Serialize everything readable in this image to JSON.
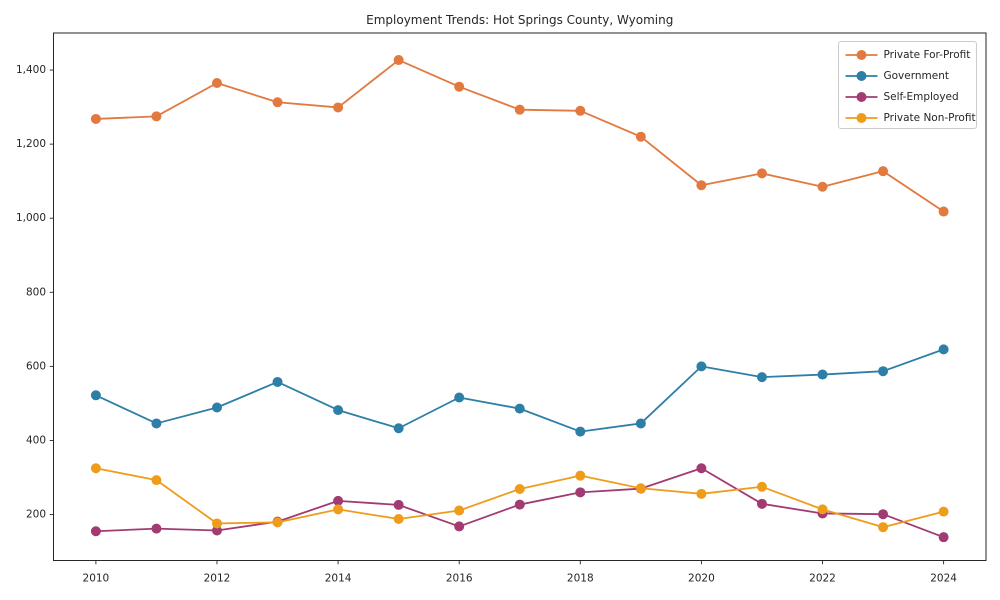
{
  "chart_data": {
    "type": "line",
    "title": "Employment Trends: Hot Springs County, Wyoming",
    "xlabel": "",
    "ylabel": "",
    "grid": false,
    "legend_position": "upper right",
    "x": [
      2010,
      2011,
      2012,
      2013,
      2014,
      2015,
      2016,
      2017,
      2018,
      2019,
      2020,
      2021,
      2022,
      2023,
      2024
    ],
    "series": [
      {
        "name": "Private For-Profit",
        "color": "#E2793F",
        "values": [
          1268,
          1275,
          1365,
          1313,
          1299,
          1427,
          1355,
          1293,
          1290,
          1220,
          1089,
          1121,
          1085,
          1127,
          1018
        ]
      },
      {
        "name": "Government",
        "color": "#2E7FA7",
        "values": [
          522,
          446,
          489,
          558,
          482,
          433,
          516,
          486,
          424,
          446,
          600,
          571,
          578,
          587,
          646
        ]
      },
      {
        "name": "Self-Employed",
        "color": "#A23B72",
        "values": [
          155,
          162,
          157,
          181,
          237,
          226,
          168,
          227,
          260,
          270,
          325,
          229,
          203,
          201,
          139
        ]
      },
      {
        "name": "Private Non-Profit",
        "color": "#F09C1B",
        "values": [
          325,
          293,
          176,
          179,
          214,
          188,
          211,
          269,
          305,
          271,
          256,
          275,
          214,
          166,
          208
        ]
      }
    ],
    "xlim": [
      2009.3,
      2024.7
    ],
    "ylim": [
      76,
      1500
    ],
    "x_ticks": [
      2010,
      2012,
      2014,
      2016,
      2018,
      2020,
      2022,
      2024
    ],
    "x_tick_labels": [
      "2010",
      "2012",
      "2014",
      "2016",
      "2018",
      "2020",
      "2022",
      "2024"
    ],
    "y_ticks": [
      200,
      400,
      600,
      800,
      1000,
      1200,
      1400
    ],
    "y_tick_labels": [
      "200",
      "400",
      "600",
      "800",
      "1,000",
      "1,200",
      "1,400"
    ],
    "axis_color": "#262626",
    "legend_border_color": "#cccccc",
    "background_color": "#ffffff"
  }
}
